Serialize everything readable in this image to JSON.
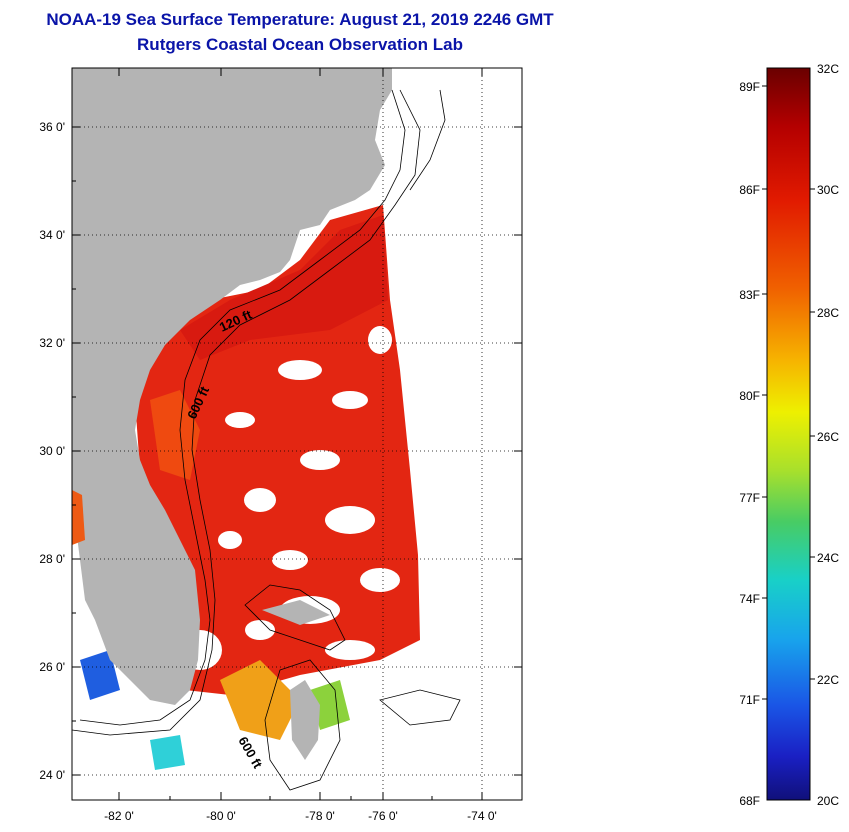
{
  "header": {
    "title": "NOAA-19 Sea Surface Temperature:  August 21, 2019 2246 GMT",
    "subtitle": "Rutgers Coastal Ocean Observation Lab"
  },
  "map": {
    "lon_ticks": [
      "-82 0'",
      "-80 0'",
      "-78 0'",
      "-76 0'",
      "-74 0'"
    ],
    "lat_ticks": [
      "36 0'",
      "34 0'",
      "32 0'",
      "30 0'",
      "28 0'",
      "26 0'",
      "24 0'"
    ],
    "contour_labels": [
      "120 ft",
      "600 ft",
      "600 ft"
    ],
    "colors": {
      "land": "#b4b4b4",
      "cloud": "#ffffff",
      "warm": "#e8200c"
    }
  },
  "colorbar": {
    "fahrenheit": [
      "89F",
      "86F",
      "83F",
      "80F",
      "77F",
      "74F",
      "71F",
      "68F"
    ],
    "celsius": [
      "32C",
      "30C",
      "28C",
      "26C",
      "24C",
      "22C",
      "20C"
    ],
    "range_c": [
      20,
      32
    ]
  }
}
